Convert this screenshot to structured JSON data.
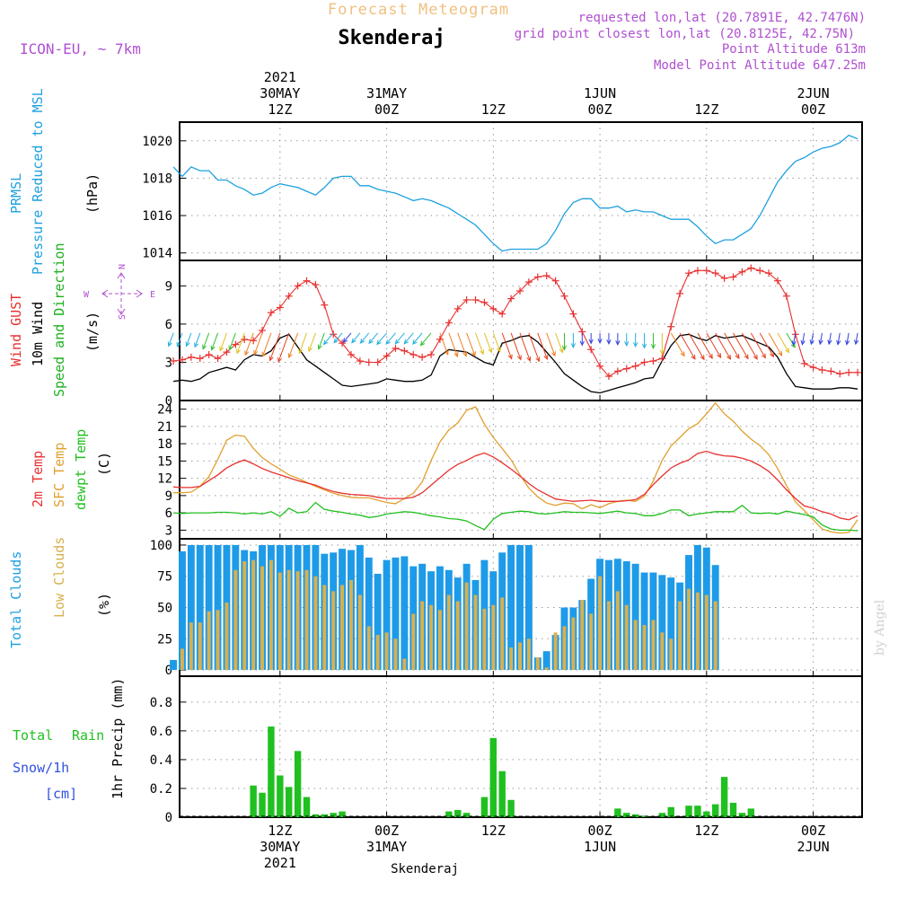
{
  "header": {
    "title": "Forecast Meteogram",
    "location": "Skenderaj",
    "model": "ICON-EU, ~ 7km",
    "requested": "requested lon,lat (20.7891E, 42.7476N)",
    "grid_point": "grid point closest lon,lat (20.8125E, 42.75N)",
    "point_altitude": "Point Altitude 613m",
    "model_altitude": "Model Point Altitude 647.25m",
    "footer_location": "Skenderaj",
    "watermark": "by Angel"
  },
  "time_axis": {
    "year": "2021",
    "ticks": [
      {
        "hour": 12,
        "top": [
          "2021",
          "30MAY",
          "12Z"
        ],
        "bottom": [
          "12Z",
          "30MAY",
          "2021"
        ]
      },
      {
        "hour": 24,
        "top": [
          "31MAY",
          "00Z"
        ],
        "bottom": [
          "00Z",
          "31MAY"
        ]
      },
      {
        "hour": 36,
        "top": [
          "12Z"
        ],
        "bottom": [
          "12Z"
        ]
      },
      {
        "hour": 48,
        "top": [
          "1JUN",
          "00Z"
        ],
        "bottom": [
          "00Z",
          "1JUN"
        ]
      },
      {
        "hour": 60,
        "top": [
          "12Z"
        ],
        "bottom": [
          "12Z"
        ]
      },
      {
        "hour": 72,
        "top": [
          "2JUN",
          "00Z"
        ],
        "bottom": [
          "00Z",
          "2JUN"
        ]
      }
    ],
    "range_hours": [
      0.7,
      77.5
    ]
  },
  "colors": {
    "pressure": "#1ea0e0",
    "gust": "#e83030",
    "wind": "#000000",
    "direction_label": "#20b020",
    "compass": "#b050d0",
    "temp": "#e83030",
    "sfc_temp": "#e0a030",
    "dewpt": "#20c020",
    "total_clouds": "#1e9be8",
    "low_clouds": "#d8b050",
    "rain": "#20c020",
    "snow_label": "#3050e0",
    "grid": "#999999",
    "title_orange": "#f0c080",
    "purple": "#b050d0"
  },
  "panels": {
    "pressure": {
      "labels": [
        "PRMSL",
        "Pressure Reduced to MSL",
        "(hPa)"
      ],
      "ylim": [
        1013.6,
        1021
      ],
      "ticks": [
        1014,
        1016,
        1018,
        1020
      ]
    },
    "wind": {
      "labels": [
        "Wind GUST",
        "10m Wind",
        "Speed and Direction",
        "(m/s)"
      ],
      "compass": {
        "n": "N",
        "s": "S",
        "w": "W",
        "e": "E"
      },
      "ylim": [
        0,
        11
      ],
      "ticks": [
        0,
        3,
        6,
        9
      ]
    },
    "temperature": {
      "labels": [
        "2m Temp",
        "SFC Temp",
        "dewpt Temp",
        "(C)"
      ],
      "ylim": [
        1.5,
        25.5
      ],
      "ticks": [
        3,
        6,
        9,
        12,
        15,
        18,
        21,
        24
      ]
    },
    "clouds": {
      "labels": [
        "Total Clouds",
        "Low Clouds",
        "(%)"
      ],
      "ylim": [
        -5,
        105
      ],
      "ticks": [
        0,
        25,
        50,
        75,
        100
      ]
    },
    "precip": {
      "labels": [
        "Total",
        "Rain",
        "Snow/1h",
        "[cm]",
        "1hr Precip (mm)"
      ],
      "ylim": [
        0,
        0.98
      ],
      "ticks": [
        "0",
        "0.2",
        "0.4",
        "0.6",
        "0.8"
      ]
    }
  },
  "chart_data": [
    {
      "type": "line",
      "name": "PRMSL",
      "ylabel": "(hPa)",
      "x_hours": [
        0,
        1,
        2,
        3,
        4,
        5,
        6,
        7,
        8,
        9,
        10,
        11,
        12,
        13,
        14,
        15,
        16,
        17,
        18,
        19,
        20,
        21,
        22,
        23,
        24,
        25,
        26,
        27,
        28,
        29,
        30,
        31,
        32,
        33,
        34,
        35,
        36,
        37,
        38,
        39,
        40,
        41,
        42,
        43,
        44,
        45,
        46,
        47,
        48,
        49,
        50,
        51,
        52,
        53,
        54,
        55,
        56,
        57,
        58,
        59,
        60,
        61,
        62,
        63,
        64,
        65,
        66,
        67,
        68,
        69,
        70,
        71,
        72,
        73,
        74,
        75,
        76,
        77
      ],
      "values": [
        1018.6,
        1018.1,
        1018.6,
        1018.4,
        1018.4,
        1017.9,
        1017.9,
        1017.6,
        1017.4,
        1017.1,
        1017.2,
        1017.5,
        1017.7,
        1017.6,
        1017.5,
        1017.3,
        1017.1,
        1017.5,
        1018.0,
        1018.1,
        1018.1,
        1017.6,
        1017.6,
        1017.4,
        1017.3,
        1017.2,
        1017.0,
        1016.8,
        1016.9,
        1016.8,
        1016.6,
        1016.4,
        1016.1,
        1015.8,
        1015.5,
        1015.0,
        1014.5,
        1014.1,
        1014.2,
        1014.2,
        1014.2,
        1014.2,
        1014.5,
        1015.2,
        1016.1,
        1016.7,
        1016.9,
        1016.9,
        1016.4,
        1016.4,
        1016.5,
        1016.2,
        1016.3,
        1016.2,
        1016.2,
        1016.0,
        1015.8,
        1015.8,
        1015.8,
        1015.4,
        1014.9,
        1014.5,
        1014.7,
        1014.7,
        1015.0,
        1015.3,
        1016.0,
        1016.9,
        1017.8,
        1018.4,
        1018.9,
        1019.1,
        1019.4,
        1019.6,
        1019.7,
        1019.9,
        1020.3,
        1020.1
      ]
    },
    {
      "type": "line",
      "series": [
        {
          "name": "Wind GUST",
          "values": [
            3.1,
            3.2,
            3.4,
            3.3,
            3.6,
            3.3,
            3.8,
            4.4,
            4.8,
            4.7,
            5.5,
            6.9,
            7.3,
            8.2,
            9.0,
            9.4,
            9.1,
            7.5,
            5.2,
            4.5,
            3.6,
            3.1,
            3.0,
            3.0,
            3.5,
            4.1,
            3.9,
            3.6,
            3.4,
            3.6,
            4.8,
            6.1,
            7.2,
            7.9,
            7.9,
            7.7,
            7.2,
            6.8,
            8.0,
            8.6,
            9.3,
            9.7,
            9.8,
            9.4,
            8.2,
            6.8,
            5.4,
            4.0,
            2.7,
            1.9,
            2.3,
            2.5,
            2.7,
            3.0,
            3.1,
            3.3,
            5.8,
            8.4,
            10.0,
            10.2,
            10.2,
            10.0,
            9.6,
            9.7,
            10.1,
            10.4,
            10.2,
            10.0,
            9.4,
            8.2,
            5.2,
            2.9,
            2.6,
            2.4,
            2.3,
            2.1,
            2.2,
            2.2
          ]
        },
        {
          "name": "10m Wind",
          "values": [
            1.5,
            1.6,
            1.5,
            1.7,
            2.2,
            2.4,
            2.6,
            2.4,
            3.2,
            3.6,
            3.5,
            3.9,
            4.9,
            5.2,
            4.2,
            3.2,
            2.7,
            2.2,
            1.7,
            1.2,
            1.1,
            1.2,
            1.3,
            1.4,
            1.7,
            1.6,
            1.5,
            1.5,
            1.6,
            2.0,
            3.5,
            4.0,
            3.9,
            3.8,
            3.4,
            3.0,
            2.8,
            4.5,
            4.7,
            5.0,
            5.1,
            4.6,
            3.8,
            3.0,
            2.1,
            1.6,
            1.1,
            0.7,
            0.6,
            0.8,
            1.0,
            1.2,
            1.4,
            1.7,
            1.8,
            3.1,
            4.3,
            5.1,
            5.2,
            4.9,
            4.7,
            5.1,
            4.9,
            5.0,
            5.1,
            4.8,
            4.5,
            4.2,
            3.4,
            2.1,
            1.1,
            1.0,
            0.9,
            0.9,
            0.9,
            1.0,
            1.0,
            0.9
          ]
        }
      ],
      "x_hours": [
        0,
        1,
        2,
        3,
        4,
        5,
        6,
        7,
        8,
        9,
        10,
        11,
        12,
        13,
        14,
        15,
        16,
        17,
        18,
        19,
        20,
        21,
        22,
        23,
        24,
        25,
        26,
        27,
        28,
        29,
        30,
        31,
        32,
        33,
        34,
        35,
        36,
        37,
        38,
        39,
        40,
        41,
        42,
        43,
        44,
        45,
        46,
        47,
        48,
        49,
        50,
        51,
        52,
        53,
        54,
        55,
        56,
        57,
        58,
        59,
        60,
        61,
        62,
        63,
        64,
        65,
        66,
        67,
        68,
        69,
        70,
        71,
        72,
        73,
        74,
        75,
        76,
        77
      ],
      "ylabel": "(m/s)"
    },
    {
      "type": "line",
      "series": [
        {
          "name": "2m Temp",
          "values": [
            10.5,
            10.4,
            10.4,
            10.6,
            11.6,
            12.6,
            13.8,
            14.6,
            15.2,
            14.5,
            13.7,
            13.1,
            12.6,
            12.1,
            11.6,
            11.2,
            10.8,
            10.2,
            9.7,
            9.4,
            9.2,
            9.1,
            9.0,
            8.7,
            8.5,
            8.5,
            8.5,
            8.7,
            9.5,
            10.8,
            12.1,
            13.4,
            14.4,
            15.1,
            15.9,
            16.4,
            15.7,
            14.7,
            13.6,
            12.4,
            11.1,
            10.0,
            9.2,
            8.4,
            8.2,
            8.0,
            8.1,
            8.2,
            8.0,
            8.0,
            8.0,
            8.1,
            8.3,
            9.2,
            10.9,
            12.4,
            13.8,
            14.6,
            15.2,
            16.3,
            16.7,
            16.2,
            15.9,
            15.8,
            15.5,
            15.0,
            14.2,
            13.2,
            11.7,
            10.0,
            8.5,
            7.2,
            6.8,
            6.2,
            5.8,
            5.1,
            4.8,
            5.5
          ]
        },
        {
          "name": "SFC Temp",
          "values": [
            9.5,
            9.5,
            9.6,
            10.6,
            12.3,
            15.3,
            18.6,
            19.5,
            19.3,
            17.2,
            15.6,
            14.5,
            13.6,
            12.6,
            12.0,
            11.3,
            10.6,
            10.0,
            9.4,
            9.0,
            8.7,
            8.6,
            8.6,
            8.2,
            7.8,
            7.6,
            8.5,
            9.4,
            11.4,
            15.1,
            18.3,
            20.4,
            21.6,
            23.8,
            24.4,
            21.4,
            19.1,
            17.2,
            15.2,
            12.6,
            10.3,
            8.8,
            7.7,
            7.3,
            7.7,
            7.6,
            6.7,
            7.4,
            6.9,
            7.6,
            8.0,
            8.2,
            8.0,
            8.9,
            11.5,
            15.1,
            17.6,
            19.1,
            20.6,
            21.5,
            23.2,
            25.1,
            23.2,
            21.9,
            20.2,
            18.8,
            17.7,
            16.1,
            13.7,
            10.7,
            7.9,
            6.4,
            4.8,
            3.2,
            2.7,
            2.5,
            2.6,
            4.8
          ]
        },
        {
          "name": "dewpt Temp",
          "values": [
            6.0,
            5.9,
            6.0,
            6.0,
            6.0,
            6.1,
            6.1,
            6.0,
            5.8,
            6.0,
            5.8,
            6.2,
            5.4,
            6.8,
            6.0,
            6.2,
            7.8,
            6.6,
            6.3,
            6.1,
            5.8,
            5.6,
            5.2,
            5.4,
            5.8,
            6.0,
            6.2,
            6.1,
            5.8,
            5.5,
            5.3,
            5.0,
            4.9,
            4.6,
            3.8,
            3.1,
            4.9,
            5.9,
            6.1,
            6.3,
            6.2,
            5.9,
            5.8,
            6.0,
            6.2,
            6.1,
            6.1,
            6.0,
            5.9,
            6.1,
            6.3,
            6.0,
            5.9,
            5.5,
            5.5,
            5.9,
            6.5,
            6.5,
            5.5,
            5.8,
            6.0,
            6.2,
            6.2,
            6.2,
            7.3,
            6.0,
            5.9,
            6.0,
            5.8,
            6.3,
            6.0,
            5.7,
            5.3,
            3.9,
            3.2,
            3.0,
            3.0,
            2.9
          ]
        }
      ],
      "x_hours": [
        0,
        1,
        2,
        3,
        4,
        5,
        6,
        7,
        8,
        9,
        10,
        11,
        12,
        13,
        14,
        15,
        16,
        17,
        18,
        19,
        20,
        21,
        22,
        23,
        24,
        25,
        26,
        27,
        28,
        29,
        30,
        31,
        32,
        33,
        34,
        35,
        36,
        37,
        38,
        39,
        40,
        41,
        42,
        43,
        44,
        45,
        46,
        47,
        48,
        49,
        50,
        51,
        52,
        53,
        54,
        55,
        56,
        57,
        58,
        59,
        60,
        61,
        62,
        63,
        64,
        65,
        66,
        67,
        68,
        69,
        70,
        71,
        72,
        73,
        74,
        75,
        76,
        77
      ],
      "ylabel": "(C)"
    },
    {
      "type": "bar",
      "series": [
        {
          "name": "Total Clouds",
          "values": [
            8,
            95,
            100,
            100,
            100,
            100,
            100,
            100,
            96,
            95,
            100,
            100,
            100,
            100,
            100,
            100,
            100,
            93,
            94,
            97,
            96,
            100,
            90,
            77,
            88,
            90,
            91,
            83,
            85,
            79,
            83,
            80,
            74,
            85,
            72,
            88,
            79,
            94,
            100,
            100,
            100,
            10,
            15,
            28,
            50,
            50,
            56,
            73,
            89,
            88,
            89,
            87,
            85,
            78,
            78,
            76,
            74,
            70,
            92,
            100,
            98,
            84,
            0,
            0,
            0,
            0,
            0,
            0,
            0,
            0,
            0,
            0,
            0,
            0,
            0,
            0,
            0,
            0
          ]
        },
        {
          "name": "Low Clouds",
          "values": [
            0,
            17,
            38,
            38,
            47,
            48,
            54,
            80,
            87,
            88,
            83,
            88,
            78,
            80,
            79,
            80,
            75,
            68,
            63,
            68,
            72,
            60,
            35,
            28,
            30,
            25,
            9,
            45,
            55,
            52,
            48,
            60,
            55,
            70,
            60,
            49,
            52,
            58,
            18,
            22,
            25,
            10,
            2,
            30,
            35,
            42,
            56,
            45,
            75,
            55,
            63,
            52,
            40,
            36,
            40,
            30,
            25,
            55,
            65,
            62,
            60,
            55,
            0,
            0,
            0,
            0,
            0,
            0,
            0,
            0,
            0,
            0,
            0,
            0,
            0,
            0,
            0,
            0
          ]
        }
      ],
      "x_hours": [
        0,
        1,
        2,
        3,
        4,
        5,
        6,
        7,
        8,
        9,
        10,
        11,
        12,
        13,
        14,
        15,
        16,
        17,
        18,
        19,
        20,
        21,
        22,
        23,
        24,
        25,
        26,
        27,
        28,
        29,
        30,
        31,
        32,
        33,
        34,
        35,
        36,
        37,
        38,
        39,
        40,
        41,
        42,
        43,
        44,
        45,
        46,
        47,
        48,
        49,
        50,
        51,
        52,
        53,
        54,
        55,
        56,
        57,
        58,
        59,
        60,
        61,
        62,
        63,
        64,
        65,
        66,
        67,
        68,
        69,
        70,
        71,
        72,
        73,
        74,
        75,
        76,
        77
      ],
      "ylabel": "(%)"
    },
    {
      "type": "bar",
      "name": "Total Rain",
      "x_hours": [
        9,
        10,
        11,
        12,
        13,
        14,
        15,
        16,
        17,
        18,
        19,
        20,
        31,
        32,
        33,
        34,
        35,
        36,
        37,
        38,
        39,
        50,
        51,
        52,
        53,
        54,
        55,
        56,
        57,
        58,
        59,
        60,
        61,
        62,
        63,
        64,
        65
      ],
      "values": [
        0.22,
        0.17,
        0.63,
        0.29,
        0.21,
        0.46,
        0.14,
        0.02,
        0.02,
        0.03,
        0.04,
        0.0,
        0.04,
        0.05,
        0.03,
        0.0,
        0.14,
        0.55,
        0.32,
        0.12,
        0.0,
        0.06,
        0.03,
        0.02,
        0.01,
        0.0,
        0.03,
        0.07,
        0.0,
        0.08,
        0.08,
        0.04,
        0.09,
        0.28,
        0.1,
        0.03,
        0.06
      ],
      "ylabel": "1hr Precip (mm)"
    }
  ]
}
